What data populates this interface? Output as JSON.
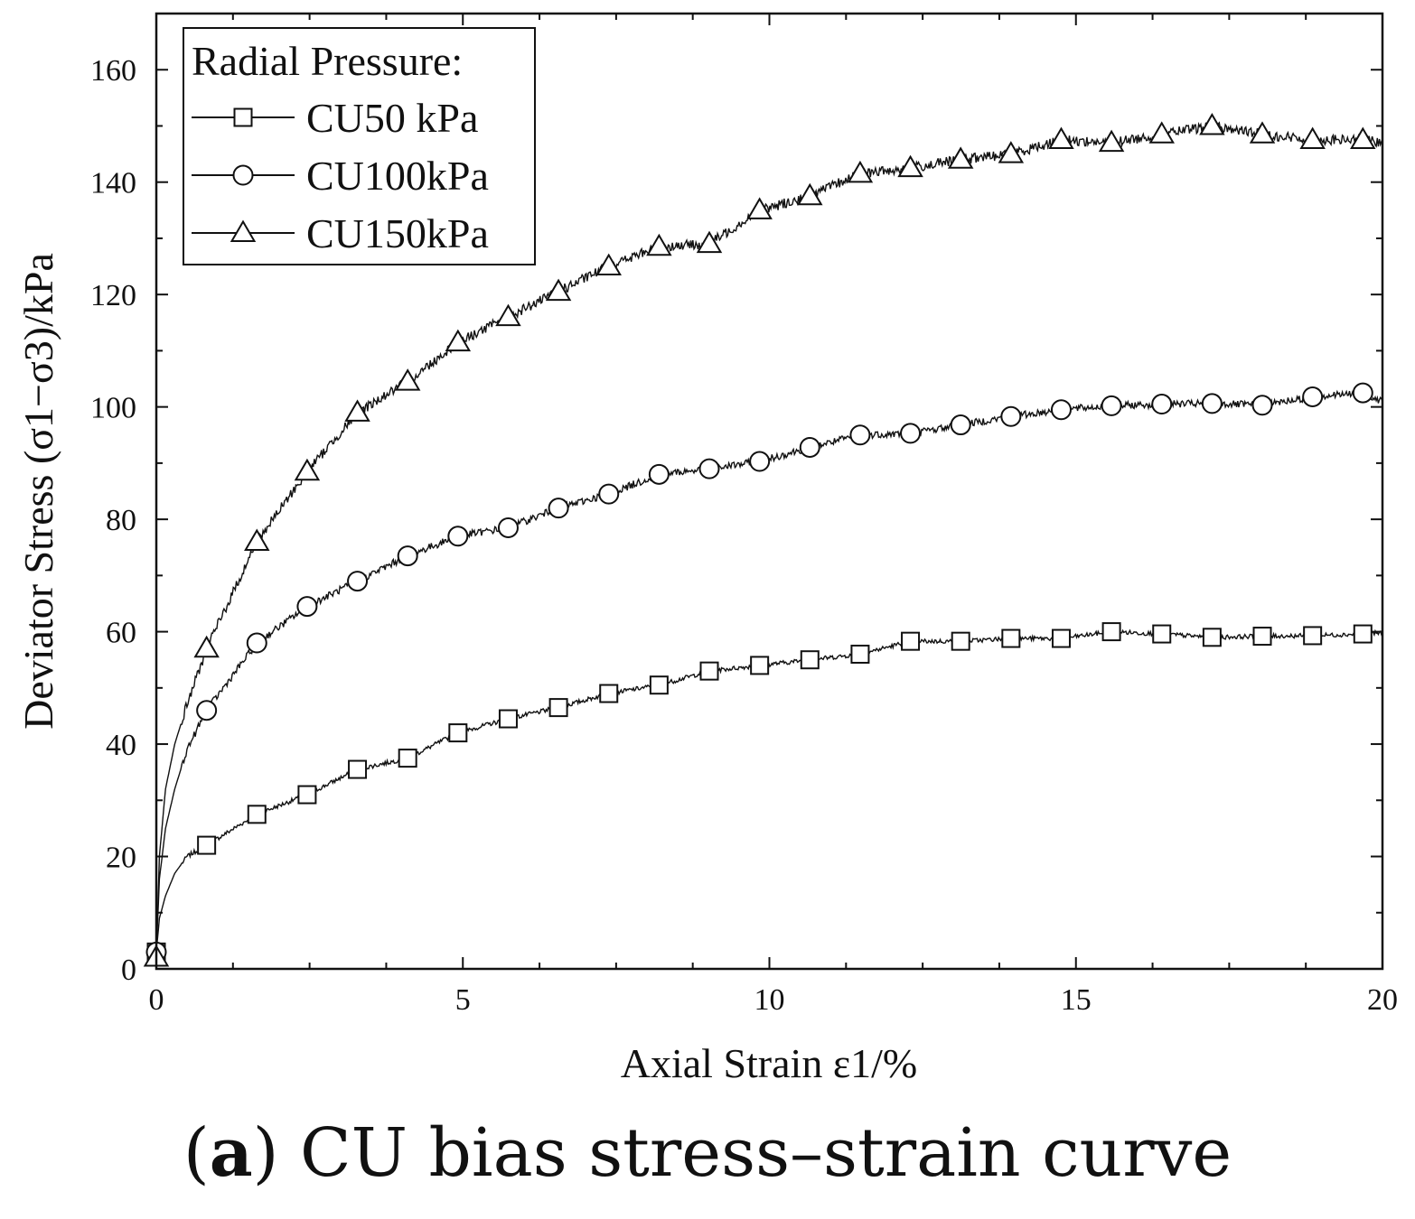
{
  "chart_data": {
    "type": "line",
    "x_label": "Axial Strain  ε1/%",
    "y_label": "Deviator Stress (σ1−σ3)/kPa",
    "xlim": [
      0,
      20
    ],
    "ylim": [
      0,
      170
    ],
    "x_ticks": [
      0,
      5,
      10,
      15,
      20
    ],
    "y_ticks": [
      0,
      20,
      40,
      60,
      80,
      100,
      120,
      140,
      160
    ],
    "grid": false,
    "legend_title": "Radial Pressure:",
    "legend_position": "top-left",
    "series": [
      {
        "name": "CU50 kPa",
        "marker": "square",
        "x": [
          0,
          0.05,
          0.15,
          0.3,
          0.5,
          0.82,
          1.64,
          2.46,
          3.28,
          4.1,
          4.92,
          5.74,
          6.56,
          7.38,
          8.2,
          9.02,
          9.84,
          10.66,
          11.48,
          12.3,
          13.12,
          13.94,
          14.76,
          15.58,
          16.4,
          17.22,
          18.04,
          18.86,
          19.68,
          20
        ],
        "y": [
          3,
          9,
          13,
          17,
          20,
          22,
          27.5,
          31,
          35.5,
          37.5,
          42,
          44.5,
          46.5,
          49,
          50.5,
          53,
          54,
          55,
          56,
          58.3,
          58.3,
          58.8,
          58.8,
          60,
          59.6,
          59,
          59.2,
          59.3,
          59.6,
          59.8
        ]
      },
      {
        "name": "CU100kPa",
        "marker": "circle",
        "x": [
          0,
          0.05,
          0.15,
          0.3,
          0.5,
          0.82,
          1.64,
          2.46,
          3.28,
          4.1,
          4.92,
          5.74,
          6.56,
          7.38,
          8.2,
          9.02,
          9.84,
          10.66,
          11.48,
          12.3,
          13.12,
          13.94,
          14.76,
          15.58,
          16.4,
          17.22,
          18.04,
          18.86,
          19.68,
          20
        ],
        "y": [
          3,
          16,
          25,
          32,
          39,
          46,
          58,
          64.5,
          69,
          73.5,
          77,
          78.5,
          82,
          84.5,
          88,
          89,
          90.3,
          92.8,
          95,
          95.3,
          96.8,
          98.3,
          99.5,
          100.2,
          100.5,
          100.6,
          100.3,
          101.8,
          102.5,
          101
        ]
      },
      {
        "name": "CU150kPa",
        "marker": "triangle",
        "x": [
          0,
          0.05,
          0.15,
          0.3,
          0.5,
          0.82,
          1.64,
          2.46,
          3.28,
          4.1,
          4.92,
          5.74,
          6.56,
          7.38,
          8.2,
          9.02,
          9.84,
          10.66,
          11.48,
          12.3,
          13.12,
          13.94,
          14.76,
          15.58,
          16.4,
          17.22,
          18.04,
          18.86,
          19.68,
          20
        ],
        "y": [
          2,
          20,
          32,
          40,
          47,
          57,
          76,
          88.5,
          99,
          104.5,
          111.5,
          116,
          120.5,
          125,
          128.5,
          129,
          135,
          137.5,
          141.5,
          142.5,
          144,
          145,
          147.5,
          147,
          148.5,
          150,
          148.5,
          147.5,
          147.5,
          147
        ]
      }
    ]
  },
  "caption": {
    "letter": "a",
    "text": "CU bias stress–strain curve"
  }
}
